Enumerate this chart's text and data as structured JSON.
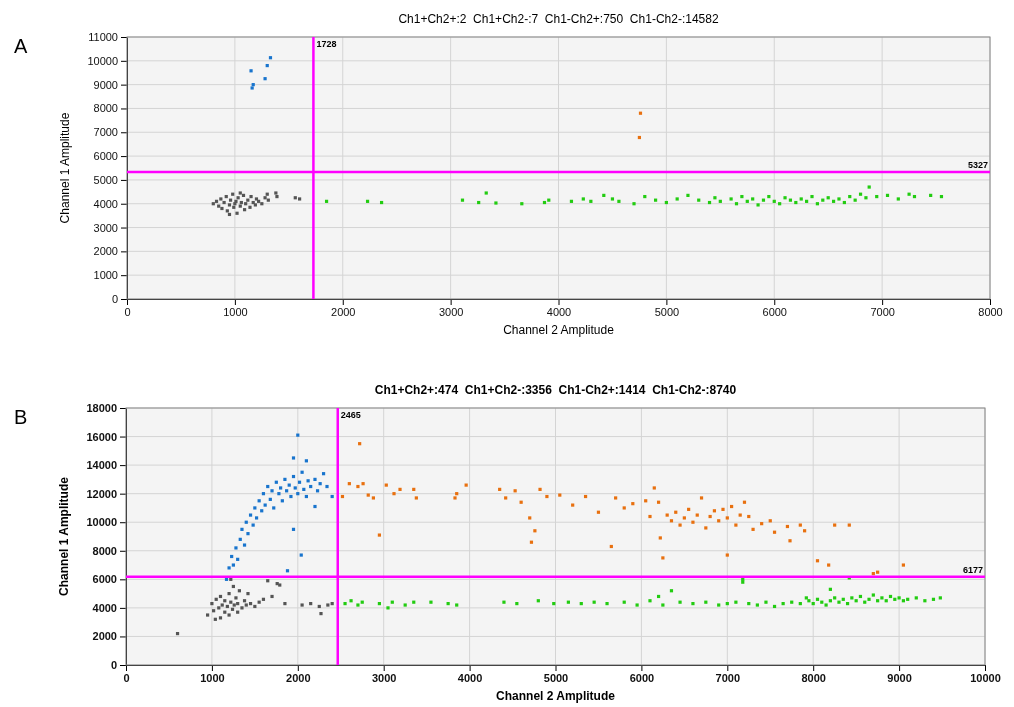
{
  "chart_data": [
    {
      "type": "scatter",
      "title": "Ch1+Ch2+:2  Ch1+Ch2-:7  Ch1-Ch2+:750  Ch1-Ch2-:14582",
      "xlabel": "Channel 2 Amplitude",
      "ylabel": "Channel 1 Amplitude",
      "annotations": [
        "A"
      ],
      "xlim": [
        0,
        8000
      ],
      "ylim": [
        0,
        11000
      ],
      "xticks": [
        0,
        1000,
        2000,
        3000,
        4000,
        5000,
        6000,
        7000,
        8000
      ],
      "yticks": [
        0,
        1000,
        2000,
        3000,
        4000,
        5000,
        6000,
        7000,
        8000,
        9000,
        10000,
        11000
      ],
      "grid": true,
      "marker": "square",
      "ref_lines": [
        {
          "axis": "x",
          "value": 1728,
          "label": "1728",
          "color": "#ff00ff"
        },
        {
          "axis": "y",
          "value": 5327,
          "label": "5327",
          "color": "#ff00ff"
        }
      ],
      "series": [
        {
          "color": "#555555",
          "x": [
            800,
            830,
            850,
            870,
            880,
            900,
            920,
            930,
            950,
            960,
            980,
            990,
            1000,
            1010,
            1020,
            1030,
            1050,
            1060,
            1080,
            1090,
            1100,
            1120,
            1140,
            1150,
            1170,
            1190,
            1200,
            1220,
            1250,
            1280,
            1300,
            1310,
            1380,
            1390,
            1560,
            1600,
            950,
            1050
          ],
          "values": [
            4000,
            4100,
            3900,
            4200,
            3800,
            4050,
            4300,
            3700,
            3950,
            4150,
            4400,
            3850,
            4000,
            4100,
            3600,
            4250,
            3900,
            4050,
            4350,
            3750,
            4000,
            4150,
            3850,
            4300,
            4050,
            3950,
            4200,
            4100,
            4000,
            4250,
            4400,
            4150,
            4450,
            4300,
            4250,
            4200,
            3550,
            4450
          ]
        },
        {
          "color": "#1874cd",
          "x": [
            1150,
            1170,
            1160,
            1300,
            1280,
            1330
          ],
          "values": [
            9580,
            9000,
            8860,
            9800,
            9250,
            10130
          ]
        },
        {
          "color": "#e8700f",
          "x": [
            4760,
            4750
          ],
          "values": [
            7800,
            6780
          ]
        },
        {
          "color": "#22cc11",
          "x": [
            1850,
            2230,
            2360,
            3110,
            3260,
            3330,
            3420,
            3660,
            3870,
            3910,
            4120,
            4230,
            4300,
            4420,
            4500,
            4560,
            4700,
            4800,
            4900,
            5000,
            5100,
            5200,
            5300,
            5400,
            5450,
            5500,
            5600,
            5650,
            5700,
            5750,
            5800,
            5850,
            5900,
            5950,
            6000,
            6050,
            6100,
            6150,
            6200,
            6250,
            6300,
            6350,
            6400,
            6450,
            6500,
            6550,
            6600,
            6650,
            6700,
            6750,
            6800,
            6850,
            6880,
            6950,
            7050,
            7150,
            7250,
            7300,
            7450,
            7550
          ],
          "values": [
            4100,
            4100,
            4050,
            4150,
            4050,
            4450,
            4030,
            4000,
            4050,
            4150,
            4100,
            4200,
            4100,
            4350,
            4200,
            4100,
            4000,
            4300,
            4150,
            4050,
            4200,
            4350,
            4150,
            4050,
            4250,
            4100,
            4200,
            4000,
            4300,
            4100,
            4200,
            3950,
            4150,
            4300,
            4100,
            4000,
            4250,
            4150,
            4050,
            4200,
            4100,
            4300,
            4000,
            4150,
            4250,
            4100,
            4200,
            4050,
            4300,
            4150,
            4400,
            4250,
            4700,
            4300,
            4350,
            4200,
            4400,
            4300,
            4350,
            4300
          ]
        }
      ]
    },
    {
      "type": "scatter",
      "title": "Ch1+Ch2+:474  Ch1+Ch2-:3356  Ch1-Ch2+:1414  Ch1-Ch2-:8740",
      "xlabel": "Channel 2 Amplitude",
      "ylabel": "Channel 1 Amplitude",
      "annotations": [
        "B"
      ],
      "xlim": [
        0,
        10000
      ],
      "ylim": [
        0,
        18000
      ],
      "xticks": [
        0,
        1000,
        2000,
        3000,
        4000,
        5000,
        6000,
        7000,
        8000,
        9000,
        10000
      ],
      "yticks": [
        0,
        2000,
        4000,
        6000,
        8000,
        10000,
        12000,
        14000,
        16000,
        18000
      ],
      "grid": true,
      "marker": "square",
      "ref_lines": [
        {
          "axis": "x",
          "value": 2465,
          "label": "2465",
          "color": "#ff00ff"
        },
        {
          "axis": "y",
          "value": 6177,
          "label": "6177",
          "color": "#ff00ff"
        }
      ],
      "series": [
        {
          "color": "#555555",
          "x": [
            600,
            950,
            1000,
            1020,
            1050,
            1080,
            1100,
            1100,
            1120,
            1150,
            1150,
            1180,
            1200,
            1200,
            1220,
            1240,
            1250,
            1260,
            1280,
            1300,
            1300,
            1320,
            1350,
            1380,
            1400,
            1420,
            1450,
            1500,
            1550,
            1600,
            1650,
            1700,
            1760,
            1790,
            1850,
            2050,
            2150,
            2250,
            2270,
            2350,
            2400,
            1220,
            1040
          ],
          "values": [
            2200,
            3500,
            4300,
            3800,
            4600,
            4000,
            3300,
            4800,
            4200,
            3700,
            4500,
            4100,
            5000,
            3500,
            4400,
            3900,
            5500,
            4200,
            4700,
            3700,
            4300,
            5200,
            4000,
            4500,
            4200,
            5000,
            4300,
            4100,
            4400,
            4600,
            5900,
            4800,
            5700,
            5600,
            4300,
            4200,
            4300,
            4100,
            3600,
            4200,
            4300,
            6000,
            3200
          ]
        },
        {
          "color": "#1874cd",
          "x": [
            1170,
            1200,
            1230,
            1250,
            1280,
            1300,
            1330,
            1350,
            1380,
            1400,
            1420,
            1450,
            1480,
            1500,
            1520,
            1550,
            1580,
            1600,
            1620,
            1650,
            1680,
            1700,
            1720,
            1750,
            1780,
            1800,
            1820,
            1850,
            1870,
            1900,
            1920,
            1950,
            1970,
            2000,
            2020,
            2050,
            2070,
            2100,
            2120,
            2150,
            2200,
            2230,
            2260,
            2300,
            2340,
            2400,
            2000,
            1950,
            2100,
            1880,
            2040,
            1950,
            2200
          ],
          "values": [
            6000,
            6800,
            7600,
            7000,
            8200,
            7400,
            8800,
            9500,
            8400,
            10000,
            9200,
            10500,
            9800,
            11000,
            10300,
            11500,
            10800,
            12000,
            11200,
            12500,
            11600,
            12200,
            11000,
            12800,
            12000,
            12400,
            11500,
            13000,
            12200,
            12600,
            11800,
            13200,
            12400,
            12000,
            12800,
            13500,
            12300,
            11800,
            12900,
            12500,
            13000,
            12200,
            12700,
            13400,
            12500,
            11800,
            16100,
            14500,
            14300,
            6600,
            7700,
            9500,
            11100
          ]
        },
        {
          "color": "#e8700f",
          "x": [
            2520,
            2600,
            2700,
            2720,
            2760,
            2820,
            2880,
            2950,
            3030,
            3120,
            3190,
            3350,
            3380,
            3830,
            3850,
            3960,
            4350,
            4420,
            4530,
            4600,
            4700,
            4720,
            4760,
            4820,
            4900,
            5050,
            5200,
            5350,
            5500,
            5650,
            5700,
            5800,
            5900,
            6050,
            6100,
            6150,
            6200,
            6220,
            6250,
            6300,
            6350,
            6400,
            6450,
            6500,
            6550,
            6600,
            6650,
            6700,
            6750,
            6800,
            6850,
            6900,
            6950,
            7000,
            7000,
            7050,
            7100,
            7150,
            7200,
            7250,
            7300,
            7400,
            7500,
            7550,
            7700,
            7730,
            7850,
            7900,
            8050,
            8180,
            8250,
            8420,
            8700,
            8750,
            9050
          ],
          "values": [
            11800,
            12700,
            12500,
            15500,
            12700,
            11900,
            11700,
            9100,
            12600,
            12000,
            12300,
            12300,
            11700,
            11700,
            12000,
            12600,
            12300,
            11700,
            12200,
            11400,
            10300,
            8600,
            9400,
            12300,
            11800,
            11900,
            11200,
            11800,
            10700,
            8300,
            11700,
            11000,
            11300,
            11500,
            10400,
            12400,
            11400,
            8900,
            7500,
            10500,
            10100,
            10700,
            9800,
            10300,
            10900,
            10000,
            10500,
            11700,
            9600,
            10400,
            10800,
            10100,
            10900,
            10300,
            7700,
            11100,
            9800,
            10500,
            11400,
            10400,
            9500,
            9900,
            10100,
            9300,
            9700,
            8700,
            9800,
            9400,
            7300,
            7000,
            9800,
            9800,
            6400,
            6500,
            7000
          ]
        },
        {
          "color": "#22cc11",
          "x": [
            2550,
            2620,
            2700,
            2750,
            2950,
            3050,
            3100,
            3250,
            3350,
            3550,
            3750,
            3850,
            4400,
            4550,
            4800,
            4980,
            5150,
            5300,
            5450,
            5600,
            5800,
            5950,
            6100,
            6200,
            6250,
            6350,
            6450,
            6600,
            6750,
            6900,
            7000,
            7100,
            7180,
            7180,
            7250,
            7350,
            7450,
            7550,
            7650,
            7750,
            7850,
            7920,
            7950,
            8000,
            8050,
            8100,
            8150,
            8200,
            8200,
            8250,
            8300,
            8350,
            8400,
            8420,
            8450,
            8500,
            8550,
            8600,
            8650,
            8700,
            8750,
            8800,
            8850,
            8900,
            8950,
            9000,
            9050,
            9100,
            9200,
            9300,
            9400,
            9480
          ],
          "values": [
            4300,
            4500,
            4200,
            4400,
            4300,
            4000,
            4400,
            4200,
            4400,
            4400,
            4300,
            4200,
            4400,
            4300,
            4500,
            4300,
            4400,
            4300,
            4400,
            4300,
            4400,
            4200,
            4500,
            4800,
            4200,
            5200,
            4400,
            4300,
            4400,
            4200,
            4300,
            4400,
            5800,
            6000,
            4300,
            4200,
            4400,
            4100,
            4300,
            4400,
            4300,
            4700,
            4500,
            4300,
            4600,
            4400,
            4200,
            4500,
            5300,
            4700,
            4400,
            4600,
            4300,
            6100,
            4700,
            4500,
            4800,
            4400,
            4600,
            4900,
            4500,
            4700,
            4500,
            4800,
            4600,
            4700,
            4500,
            4600,
            4700,
            4500,
            4600,
            4700
          ]
        }
      ]
    }
  ]
}
